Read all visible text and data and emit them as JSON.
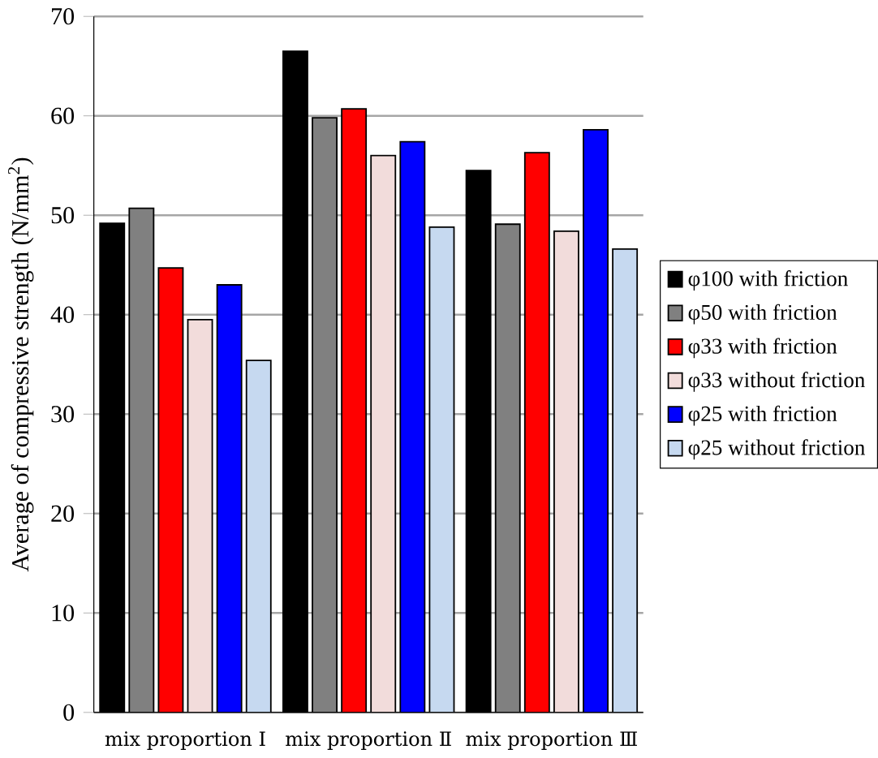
{
  "chart_data": {
    "type": "bar",
    "ylabel": "Average of compressive strength (N/mm$^{2}$)",
    "categories": [
      "mix proportion Ⅰ",
      "mix proportion Ⅱ",
      "mix proportion Ⅲ"
    ],
    "series": [
      {
        "name": "φ100 with friction",
        "color": "#000000",
        "values": [
          49.2,
          66.5,
          54.5
        ]
      },
      {
        "name": "φ50 with friction",
        "color": "#808080",
        "values": [
          50.7,
          59.8,
          49.1
        ]
      },
      {
        "name": "φ33 with friction",
        "color": "#ff0000",
        "values": [
          44.7,
          60.7,
          56.3
        ]
      },
      {
        "name": "φ33 without friction",
        "color": "#f2dcdb",
        "values": [
          39.5,
          56.0,
          48.4
        ]
      },
      {
        "name": "φ25 with friction",
        "color": "#0000ff",
        "values": [
          43.0,
          57.4,
          58.6
        ]
      },
      {
        "name": "φ25 without friction",
        "color": "#c6d9f0",
        "values": [
          35.4,
          48.8,
          46.6
        ]
      }
    ],
    "ylim": [
      0,
      70
    ],
    "yticks": [
      0,
      10,
      20,
      30,
      40,
      50,
      60,
      70
    ],
    "grid": "y",
    "legend": "right"
  }
}
